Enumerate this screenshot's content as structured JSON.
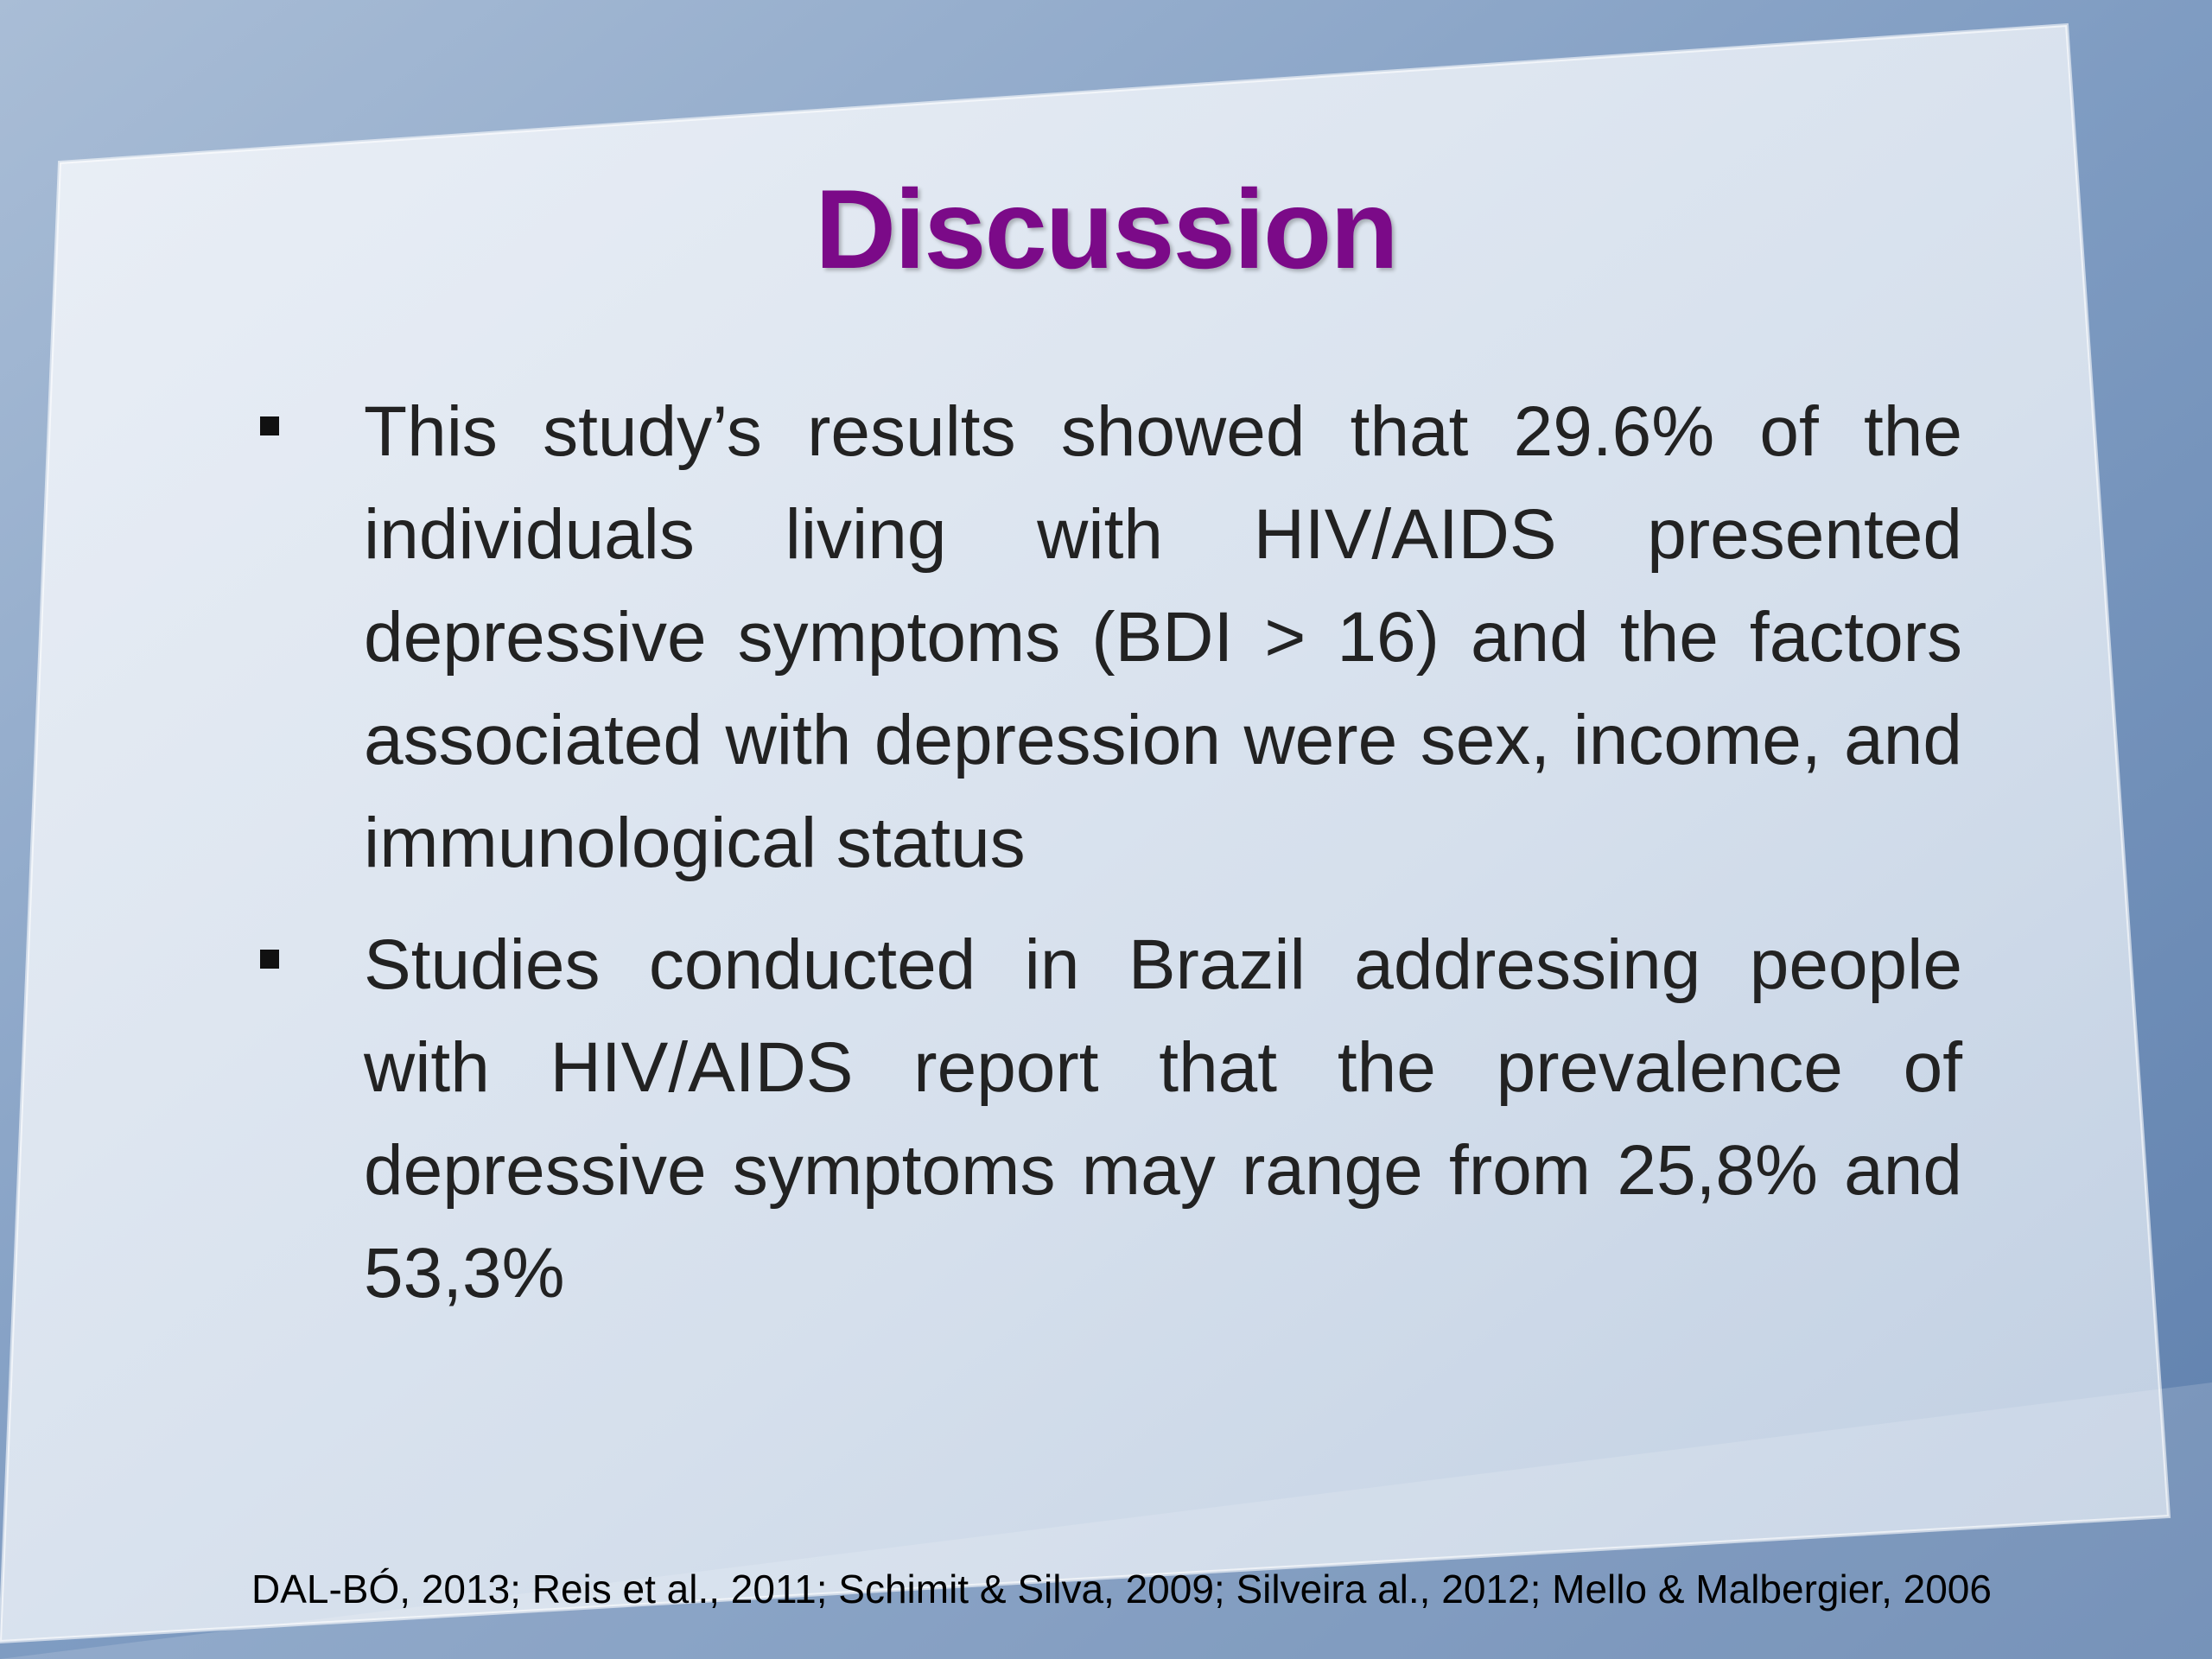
{
  "title": "Discussion",
  "bullets": [
    "This study’s results showed that 29.6% of the individuals living with HIV/AIDS presented depressive symptoms (BDI > 16) and the factors associated with depression were sex, income, and immunological status",
    "Studies conducted in Brazil addressing people with HIV/AIDS report that the prevalence of depressive symptoms may range from 25,8% and 53,3%"
  ],
  "citation": "DAL-BÓ, 2013; Reis et al., 2011; Schimit & Silva, 2009; Silveira al., 2012; Mello & Malbergier, 2006"
}
